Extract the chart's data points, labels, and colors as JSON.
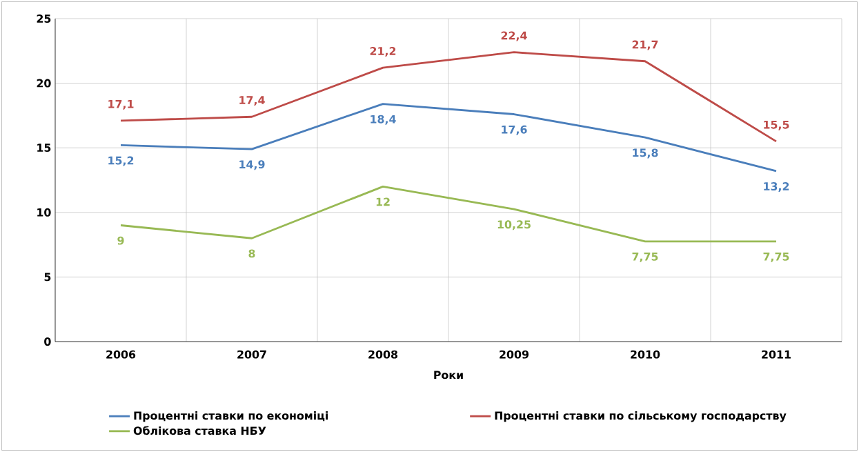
{
  "chart_data": {
    "type": "line",
    "xlabel": "Роки",
    "categories": [
      "2006",
      "2007",
      "2008",
      "2009",
      "2010",
      "2011"
    ],
    "series": [
      {
        "name": "Процентні ставки по економіці",
        "color": "#4a7ebb",
        "values": [
          15.2,
          14.9,
          18.4,
          17.6,
          15.8,
          13.2
        ],
        "value_labels": [
          "15,2",
          "14,9",
          "18,4",
          "17,6",
          "15,8",
          "13,2"
        ]
      },
      {
        "name": "Процентні ставки по сільському господарству",
        "color": "#be4b48",
        "values": [
          17.1,
          17.4,
          21.2,
          22.4,
          21.7,
          15.5
        ],
        "value_labels": [
          "17,1",
          "17,4",
          "21,2",
          "22,4",
          "21,7",
          "15,5"
        ]
      },
      {
        "name": "Облікова ставка НБУ",
        "color": "#98b954",
        "values": [
          9,
          8,
          12,
          10.25,
          7.75,
          7.75
        ],
        "value_labels": [
          "9",
          "8",
          "12",
          "10,25",
          "7,75",
          "7,75"
        ]
      }
    ],
    "ylim": [
      0,
      25
    ],
    "yticks": [
      0,
      5,
      10,
      15,
      20,
      25
    ],
    "grid": "y",
    "legend": "bottom",
    "marker": "none",
    "line_style": "solid"
  }
}
